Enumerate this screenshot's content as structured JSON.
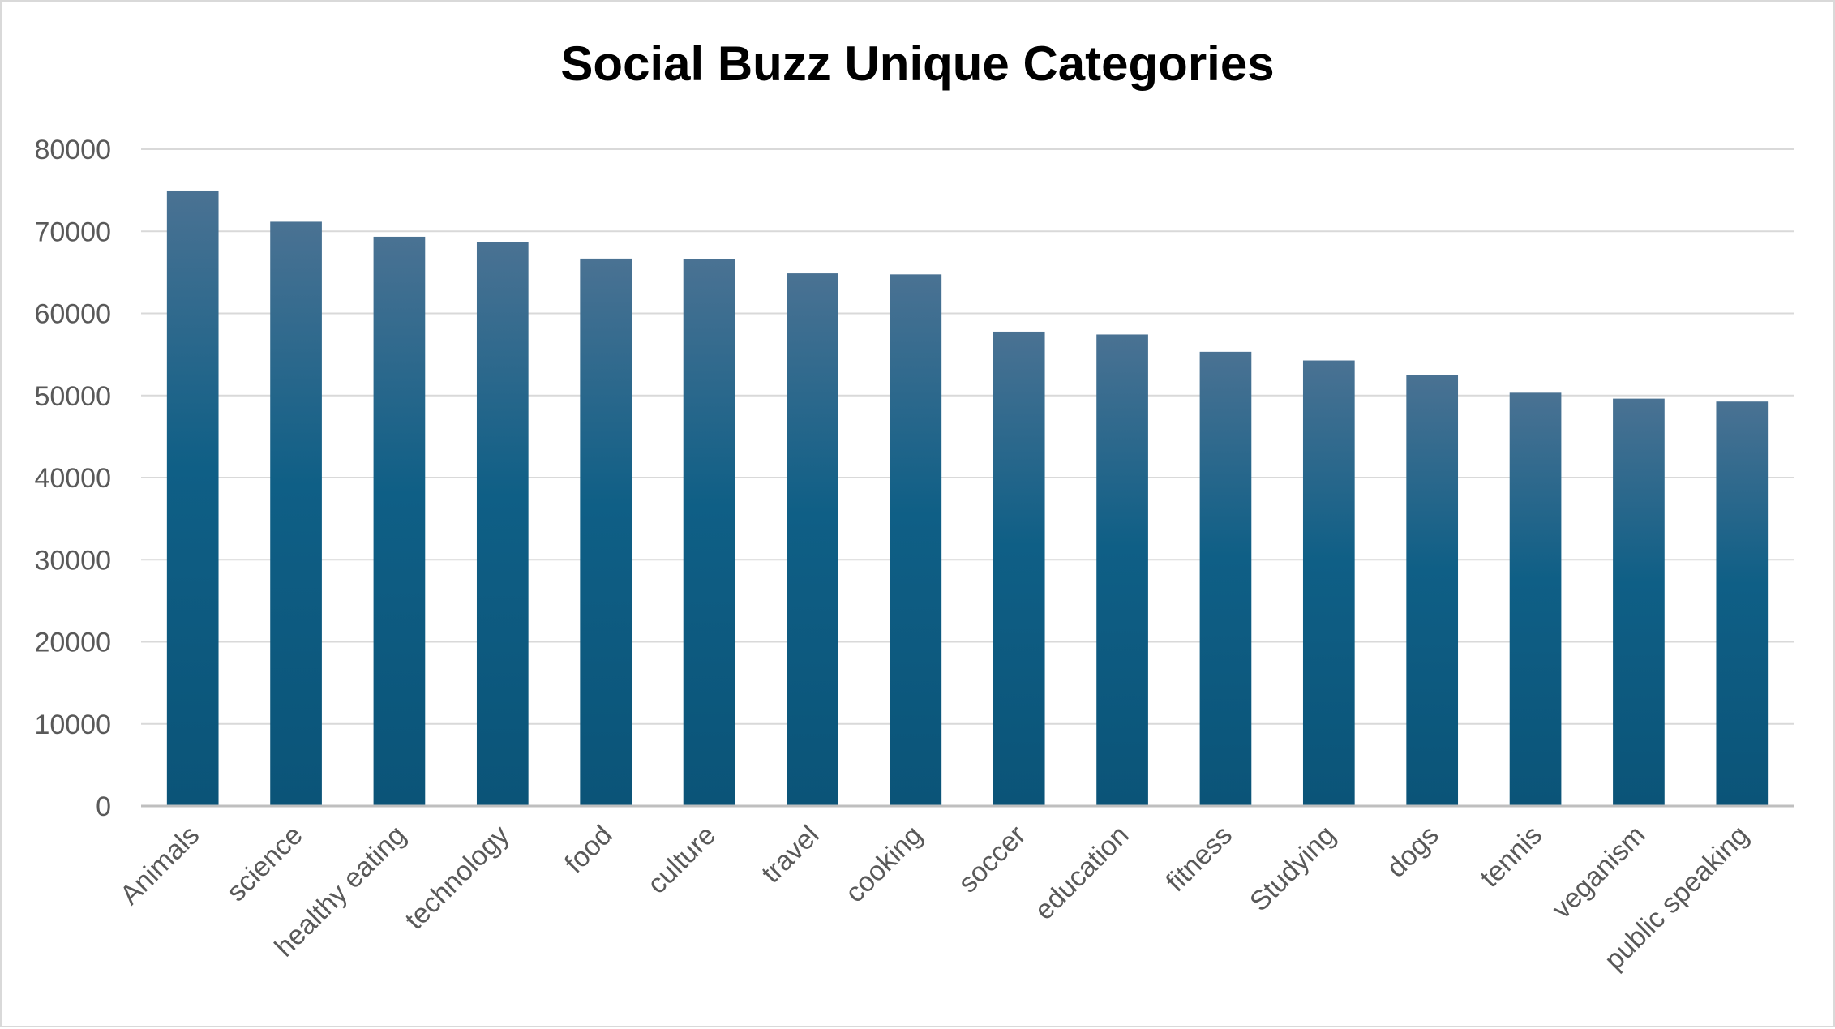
{
  "chart_data": {
    "type": "bar",
    "title": "Social Buzz Unique Categories",
    "xlabel": "",
    "ylabel": "",
    "ylim": [
      0,
      80000
    ],
    "yticks": [
      0,
      10000,
      20000,
      30000,
      40000,
      50000,
      60000,
      70000,
      80000
    ],
    "grid": true,
    "legend": "none",
    "categories": [
      "Animals",
      "science",
      "healthy eating",
      "technology",
      "food",
      "culture",
      "travel",
      "cooking",
      "soccer",
      "education",
      "fitness",
      "Studying",
      "dogs",
      "tennis",
      "veganism",
      "public speaking"
    ],
    "values": [
      74965,
      71168,
      69339,
      68738,
      66676,
      66579,
      64880,
      64756,
      57783,
      57436,
      55323,
      54269,
      52511,
      50339,
      49619,
      49264
    ],
    "colors": {
      "bar_top": "#4a7293",
      "bar_mid": "#0f5f86",
      "bar_bottom": "#0b5478",
      "grid": "#d9d9d9",
      "axis": "#bfbfbf"
    }
  }
}
